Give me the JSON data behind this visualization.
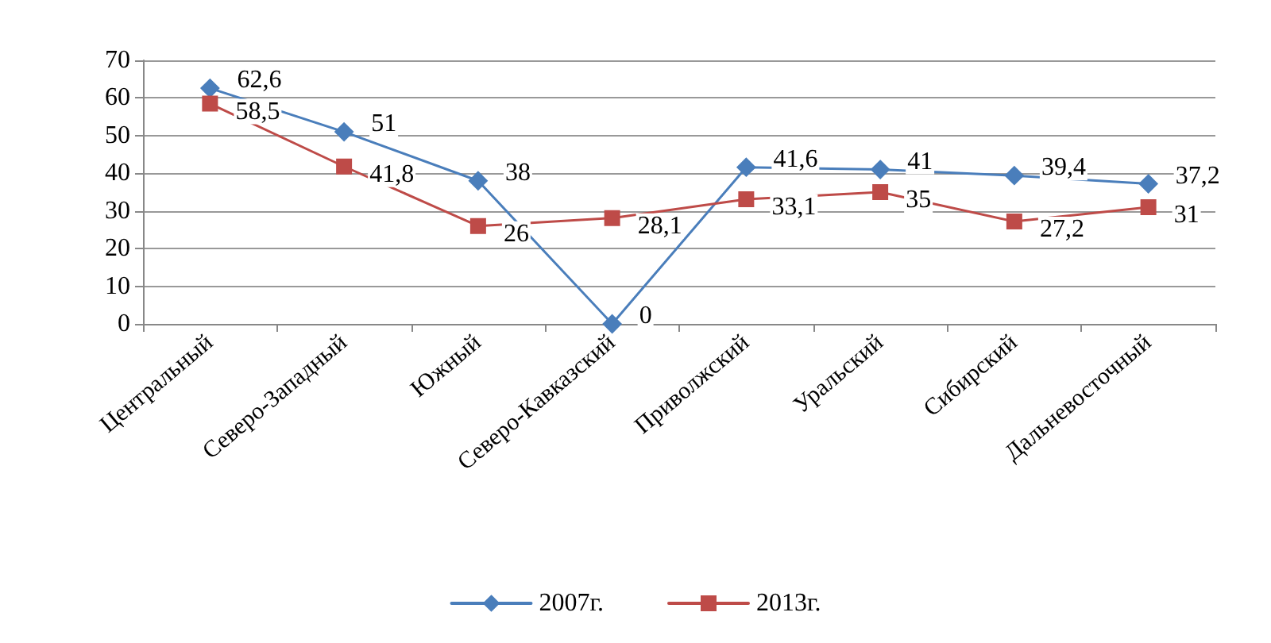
{
  "chart_data": {
    "type": "line",
    "categories": [
      "Центральный",
      "Северо-Западный",
      "Южный",
      "Северо-Кавказский",
      "Приволжский",
      "Уральский",
      "Сибирский",
      "Дальневосточный"
    ],
    "series": [
      {
        "name": "2007г.",
        "color": "#4a7ebb",
        "marker": "diamond",
        "values": [
          62.6,
          51,
          38,
          0,
          41.6,
          41,
          39.4,
          37.2
        ],
        "value_labels": [
          "62,6",
          "51",
          "38",
          "0",
          "41,6",
          "41",
          "39,4",
          "37,2"
        ]
      },
      {
        "name": "2013г.",
        "color": "#be4b48",
        "marker": "square",
        "values": [
          58.5,
          41.8,
          26,
          28.1,
          33.1,
          35,
          27.2,
          31
        ],
        "value_labels": [
          "58,5",
          "41,8",
          "26",
          "28,1",
          "33,1",
          "35",
          "27,2",
          "31"
        ]
      }
    ],
    "ylim": [
      0,
      70
    ],
    "yticks": [
      0,
      10,
      20,
      30,
      40,
      50,
      60,
      70
    ],
    "grid": "y",
    "legend": "bottom",
    "line_style": "solid"
  }
}
